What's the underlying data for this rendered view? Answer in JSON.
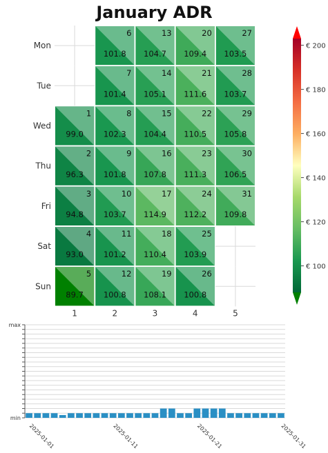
{
  "title": "January ADR",
  "chart_data": [
    {
      "type": "heatmap",
      "title": "January ADR",
      "rows": [
        "Mon",
        "Tue",
        "Wed",
        "Thu",
        "Fri",
        "Sat",
        "Sun"
      ],
      "columns": [
        "1",
        "2",
        "3",
        "4",
        "5"
      ],
      "cells": [
        {
          "day": 1,
          "row": 2,
          "col": 0,
          "value": 99.0
        },
        {
          "day": 2,
          "row": 3,
          "col": 0,
          "value": 96.3
        },
        {
          "day": 3,
          "row": 4,
          "col": 0,
          "value": 94.8
        },
        {
          "day": 4,
          "row": 5,
          "col": 0,
          "value": 93.0
        },
        {
          "day": 5,
          "row": 6,
          "col": 0,
          "value": 89.7
        },
        {
          "day": 6,
          "row": 0,
          "col": 1,
          "value": 101.8
        },
        {
          "day": 7,
          "row": 1,
          "col": 1,
          "value": 101.4
        },
        {
          "day": 8,
          "row": 2,
          "col": 1,
          "value": 102.3
        },
        {
          "day": 9,
          "row": 3,
          "col": 1,
          "value": 101.8
        },
        {
          "day": 10,
          "row": 4,
          "col": 1,
          "value": 103.7
        },
        {
          "day": 11,
          "row": 5,
          "col": 1,
          "value": 101.2
        },
        {
          "day": 12,
          "row": 6,
          "col": 1,
          "value": 100.8
        },
        {
          "day": 13,
          "row": 0,
          "col": 2,
          "value": 104.7
        },
        {
          "day": 14,
          "row": 1,
          "col": 2,
          "value": 105.1
        },
        {
          "day": 15,
          "row": 2,
          "col": 2,
          "value": 104.4
        },
        {
          "day": 16,
          "row": 3,
          "col": 2,
          "value": 107.8
        },
        {
          "day": 17,
          "row": 4,
          "col": 2,
          "value": 114.9
        },
        {
          "day": 18,
          "row": 5,
          "col": 2,
          "value": 110.4
        },
        {
          "day": 19,
          "row": 6,
          "col": 2,
          "value": 108.1
        },
        {
          "day": 20,
          "row": 0,
          "col": 3,
          "value": 109.4
        },
        {
          "day": 21,
          "row": 1,
          "col": 3,
          "value": 111.6
        },
        {
          "day": 22,
          "row": 2,
          "col": 3,
          "value": 110.5
        },
        {
          "day": 23,
          "row": 3,
          "col": 3,
          "value": 111.3
        },
        {
          "day": 24,
          "row": 4,
          "col": 3,
          "value": 112.2
        },
        {
          "day": 25,
          "row": 5,
          "col": 3,
          "value": 103.9
        },
        {
          "day": 26,
          "row": 6,
          "col": 3,
          "value": 100.8
        },
        {
          "day": 27,
          "row": 0,
          "col": 4,
          "value": 103.5
        },
        {
          "day": 28,
          "row": 1,
          "col": 4,
          "value": 103.7
        },
        {
          "day": 29,
          "row": 2,
          "col": 4,
          "value": 105.8
        },
        {
          "day": 30,
          "row": 3,
          "col": 4,
          "value": 106.5
        },
        {
          "day": 31,
          "row": 4,
          "col": 4,
          "value": 109.8
        }
      ],
      "colorbar": {
        "ticks": [
          100,
          120,
          140,
          160,
          180,
          200
        ],
        "tick_labels": [
          "€ 100",
          "€ 120",
          "€ 140",
          "€ 160",
          "€ 180",
          "€ 200"
        ],
        "range": [
          88,
          203
        ]
      }
    },
    {
      "type": "bar",
      "x_tick_labels": [
        "2025-01-01",
        "2025-01-11",
        "2025-01-21",
        "2025-01-31"
      ],
      "y_tick_labels": [
        "min",
        "max"
      ],
      "ylim": [
        0,
        20
      ],
      "values": [
        1,
        1,
        1,
        1,
        0.6,
        1,
        1,
        1,
        1,
        1,
        1,
        1,
        1,
        1,
        1,
        1,
        2,
        2,
        1,
        1,
        2,
        2,
        2,
        2,
        1,
        1,
        1,
        1,
        1,
        1,
        1
      ]
    }
  ],
  "colors": {
    "bar": "#2a8fc4",
    "grid": "#d9d9d9",
    "cell_border": "#ffffff"
  }
}
